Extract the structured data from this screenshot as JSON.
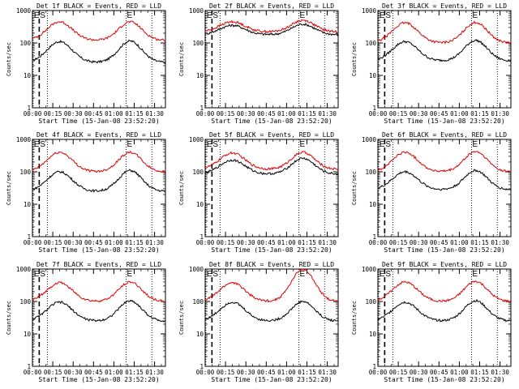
{
  "page": {
    "background": "#ffffff"
  },
  "colors": {
    "events": "#000000",
    "lld": "#dd0000",
    "axis": "#000000"
  },
  "panels": [
    {
      "title": "Det 1f BLACK = Events, RED = LLD",
      "xlabel": "Start Time (15-Jan-08 23:52:20)",
      "ylabel": "Counts/sec"
    },
    {
      "title": "Det 2f BLACK = Events, RED = LLD",
      "xlabel": "Start Time (15-Jan-08 23:52:20)",
      "ylabel": "Counts/sec"
    },
    {
      "title": "Det 3f BLACK = Events, RED = LLD",
      "xlabel": "Start Time (15-Jan-08 23:52:20)",
      "ylabel": "Counts/sec"
    },
    {
      "title": "Det 4f BLACK = Events, RED = LLD",
      "xlabel": "Start Time (15-Jan-08 23:52:20)",
      "ylabel": "Counts/sec"
    },
    {
      "title": "Det 5f BLACK = Events, RED = LLD",
      "xlabel": "Start Time (15-Jan-08 23:52:20)",
      "ylabel": "Counts/sec"
    },
    {
      "title": "Det 6f BLACK = Events, RED = LLD",
      "xlabel": "Start Time (15-Jan-08 23:52:20)",
      "ylabel": "Counts/sec"
    },
    {
      "title": "Det 7f BLACK = Events, RED = LLD",
      "xlabel": "Start Time (15-Jan-08 23:52:20)",
      "ylabel": "Counts/sec"
    },
    {
      "title": "Det 8f BLACK = Events, RED = LLD",
      "xlabel": "Start Time (15-Jan-08 23:52:20)",
      "ylabel": "Counts/sec"
    },
    {
      "title": "Det 9f BLACK = Events, RED = LLD",
      "xlabel": "Start Time (15-Jan-08 23:52:20)",
      "ylabel": "Counts/sec"
    }
  ],
  "chart_data": {
    "type": "line",
    "layout": "3x3 grid",
    "y_scale": "log",
    "ylim": [
      1,
      1000
    ],
    "y_ticks": [
      "1",
      "10",
      "100",
      "1000"
    ],
    "xlim_minutes_from_start": [
      0,
      98
    ],
    "x_ticks": [
      "00:00",
      "00:15",
      "00:30",
      "00:45",
      "01:00",
      "01:15",
      "01:30"
    ],
    "x_tick_times": [
      "00:00",
      "00:15",
      "00:30",
      "00:45",
      "01:00",
      "01:15",
      "01:30"
    ],
    "markers": [
      {
        "label": "E",
        "time": "23:53",
        "style": "dotted"
      },
      {
        "label": "S",
        "time": "00:05",
        "style": "dashed"
      },
      {
        "label": "",
        "time": "00:11",
        "style": "dotted"
      },
      {
        "label": "E",
        "time": "01:09",
        "style": "dotted"
      },
      {
        "label": "",
        "time": "01:28",
        "style": "dotted"
      }
    ],
    "series": [
      {
        "name": "Events",
        "color": "#000000",
        "panels": [
          {
            "base": 25,
            "peak1": 110,
            "peak2": 115
          },
          {
            "base": 180,
            "peak1": 350,
            "peak2": 380
          },
          {
            "base": 28,
            "peak1": 110,
            "peak2": 120
          },
          {
            "base": 25,
            "peak1": 100,
            "peak2": 110
          },
          {
            "base": 85,
            "peak1": 230,
            "peak2": 260
          },
          {
            "base": 28,
            "peak1": 100,
            "peak2": 110
          },
          {
            "base": 25,
            "peak1": 95,
            "peak2": 105
          },
          {
            "base": 25,
            "peak1": 95,
            "peak2": 100
          },
          {
            "base": 25,
            "peak1": 95,
            "peak2": 105
          }
        ]
      },
      {
        "name": "LLD",
        "color": "#dd0000",
        "panels": [
          {
            "base": 120,
            "peak1": 450,
            "peak2": 450
          },
          {
            "base": 220,
            "peak1": 450,
            "peak2": 500
          },
          {
            "base": 100,
            "peak1": 420,
            "peak2": 430
          },
          {
            "base": 100,
            "peak1": 400,
            "peak2": 400
          },
          {
            "base": 120,
            "peak1": 380,
            "peak2": 400
          },
          {
            "base": 100,
            "peak1": 400,
            "peak2": 420
          },
          {
            "base": 100,
            "peak1": 380,
            "peak2": 400
          },
          {
            "base": 100,
            "peak1": 380,
            "peak2": 1000
          },
          {
            "base": 100,
            "peak1": 400,
            "peak2": 420
          }
        ]
      }
    ],
    "series_fields": {
      "base": "approx. trough counts/sec",
      "peak1": "approx. first maximum (~00:20)",
      "peak2": "approx. second maximum (~01:10)"
    }
  }
}
